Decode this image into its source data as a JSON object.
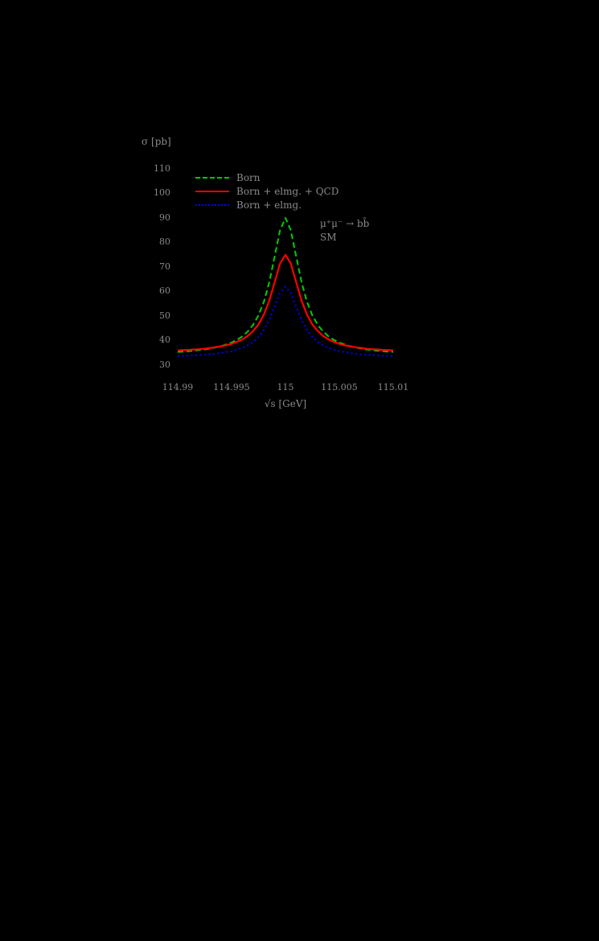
{
  "page": {
    "background": "#000000",
    "text_color": "#8a8a8a"
  },
  "chart_data": {
    "type": "line",
    "title": "",
    "xlabel": "√s [GeV]",
    "ylabel": "σ [pb]",
    "xlim": [
      114.99,
      115.01
    ],
    "ylim": [
      30,
      110
    ],
    "grid": false,
    "legend_position": "top-left-inside",
    "x_ticks": [
      "114.99",
      "114.995",
      "115",
      "115.005",
      "115.01"
    ],
    "y_ticks": [
      "30",
      "40",
      "50",
      "60",
      "70",
      "80",
      "90",
      "100",
      "110"
    ],
    "annotations": [
      "μ⁺μ⁻ → bb̄",
      "SM"
    ],
    "x": [
      114.99,
      114.9905,
      114.991,
      114.9915,
      114.992,
      114.9925,
      114.993,
      114.9935,
      114.994,
      114.9945,
      114.995,
      114.9955,
      114.996,
      114.9965,
      114.997,
      114.9975,
      114.998,
      114.9985,
      114.999,
      114.9995,
      115.0,
      115.0005,
      115.001,
      115.0015,
      115.002,
      115.0025,
      115.003,
      115.0035,
      115.004,
      115.0045,
      115.005,
      115.0055,
      115.006,
      115.0065,
      115.007,
      115.0075,
      115.008,
      115.0085,
      115.009,
      115.0095,
      115.01
    ],
    "series": [
      {
        "name": "Born",
        "color": "#00cc00",
        "style": "dashed",
        "values": [
          35.4,
          35.5,
          35.7,
          35.9,
          36.2,
          36.4,
          36.8,
          37.2,
          37.7,
          38.4,
          39.2,
          40.3,
          41.7,
          43.7,
          46.4,
          50.3,
          55.8,
          63.8,
          74.3,
          85.0,
          90.0,
          85.0,
          74.3,
          63.8,
          55.8,
          50.3,
          46.4,
          43.7,
          41.7,
          40.3,
          39.2,
          38.4,
          37.7,
          37.2,
          36.8,
          36.4,
          36.2,
          35.9,
          35.7,
          35.5,
          35.4
        ]
      },
      {
        "name": "Born + elmg. + QCD",
        "color": "#ff0000",
        "style": "solid",
        "values": [
          36.0,
          36.1,
          36.2,
          36.4,
          36.5,
          36.7,
          37.0,
          37.3,
          37.7,
          38.1,
          38.7,
          39.5,
          40.5,
          41.9,
          43.9,
          46.6,
          50.6,
          56.3,
          63.8,
          71.4,
          75.0,
          71.4,
          63.8,
          56.3,
          50.6,
          46.6,
          43.9,
          41.9,
          40.5,
          39.5,
          38.7,
          38.1,
          37.7,
          37.3,
          37.0,
          36.7,
          36.5,
          36.4,
          36.2,
          36.1,
          36.0
        ]
      },
      {
        "name": "Born + elmg.",
        "color": "#0000ff",
        "style": "dotted",
        "values": [
          33.7,
          33.8,
          33.9,
          34.0,
          34.1,
          34.3,
          34.4,
          34.7,
          34.9,
          35.3,
          35.7,
          36.3,
          37.0,
          38.0,
          39.4,
          41.4,
          44.3,
          48.4,
          53.9,
          59.4,
          62.0,
          59.4,
          53.9,
          48.4,
          44.3,
          41.4,
          39.4,
          38.0,
          37.0,
          36.3,
          35.7,
          35.3,
          34.9,
          34.7,
          34.4,
          34.3,
          34.1,
          34.0,
          33.9,
          33.8,
          33.7
        ]
      }
    ]
  }
}
